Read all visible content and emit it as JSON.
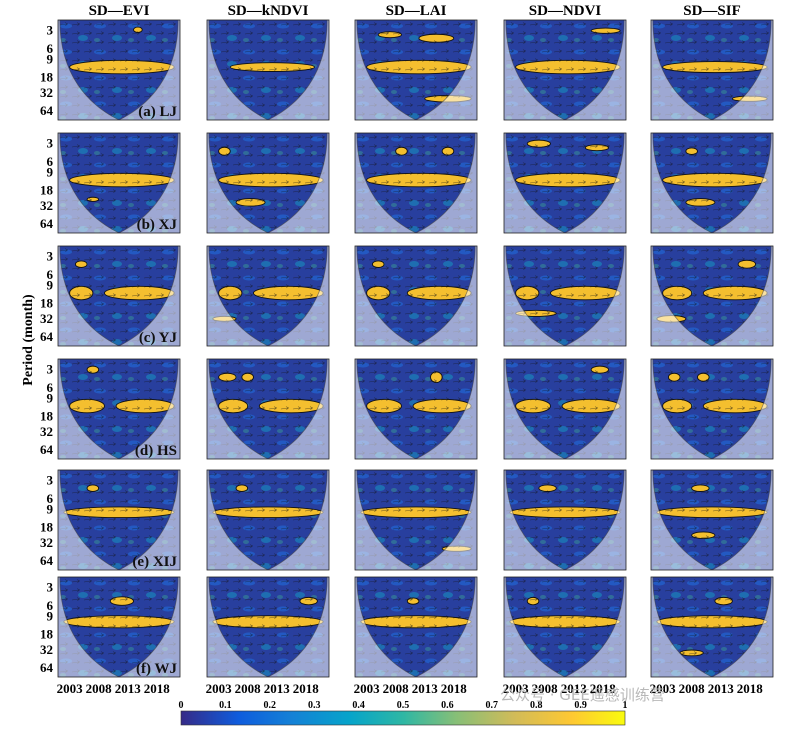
{
  "figure": {
    "columns": [
      "SD—EVI",
      "SD—kNDVI",
      "SD—LAI",
      "SD—NDVI",
      "SD—SIF"
    ],
    "rows": [
      "(a) LJ",
      "(b) XJ",
      "(c) YJ",
      "(d) HS",
      "(e) XIJ",
      "(f) WJ"
    ],
    "ylabel": "Period (month)",
    "watermark": "公众号 · GEE遥感训练营"
  },
  "chart_data": {
    "type": "heatmap",
    "x_ticks": [
      "2003",
      "2008",
      "2013",
      "2018"
    ],
    "x_range": [
      2001,
      2022
    ],
    "y_ticks": [
      "3",
      "6",
      "9",
      "18",
      "32",
      "64"
    ],
    "y_tick_values": [
      3,
      6,
      9,
      18,
      32,
      64
    ],
    "y_scale": "log2",
    "y_range": [
      2,
      90
    ],
    "colorbar": {
      "ticks": [
        "0",
        "0.1",
        "0.2",
        "0.3",
        "0.4",
        "0.5",
        "0.6",
        "0.7",
        "0.8",
        "0.9",
        "1"
      ],
      "range": [
        0,
        1
      ],
      "colors": [
        "#352a87",
        "#0f5cdd",
        "#1481d6",
        "#06a4ca",
        "#2eb7a4",
        "#87bf77",
        "#d1bb59",
        "#fec832",
        "#f9fb0e"
      ]
    },
    "panels": [
      {
        "row": "(a) LJ",
        "column": "SD—EVI",
        "bands": [
          [
            12,
            3,
            2003,
            2021
          ],
          [
            2.9,
            0.3,
            2014,
            2015.5
          ]
        ]
      },
      {
        "row": "(a) LJ",
        "column": "SD—kNDVI",
        "bands": [
          [
            12,
            2,
            2005,
            2019.5
          ]
        ]
      },
      {
        "row": "(a) LJ",
        "column": "SD—LAI",
        "bands": [
          [
            12,
            3,
            2003,
            2021
          ],
          [
            3.5,
            0.4,
            2005,
            2009
          ],
          [
            4,
            0.6,
            2012,
            2018
          ],
          [
            40,
            5,
            2013,
            2021
          ]
        ]
      },
      {
        "row": "(a) LJ",
        "column": "SD—NDVI",
        "bands": [
          [
            12,
            3,
            2003,
            2021
          ],
          [
            3,
            0.3,
            2016,
            2021
          ]
        ]
      },
      {
        "row": "(a) LJ",
        "column": "SD—SIF",
        "bands": [
          [
            12,
            2.5,
            2003,
            2021
          ],
          [
            40,
            4,
            2015,
            2021
          ]
        ]
      },
      {
        "row": "(b) XJ",
        "column": "SD—EVI",
        "bands": [
          [
            12,
            3,
            2003,
            2021
          ],
          [
            25,
            2,
            2006,
            2008
          ]
        ]
      },
      {
        "row": "(b) XJ",
        "column": "SD—kNDVI",
        "bands": [
          [
            12,
            3,
            2003,
            2021
          ],
          [
            4,
            0.6,
            2003,
            2005
          ],
          [
            28,
            4,
            2006,
            2011
          ]
        ]
      },
      {
        "row": "(b) XJ",
        "column": "SD—LAI",
        "bands": [
          [
            12,
            3,
            2003,
            2021
          ],
          [
            4,
            0.6,
            2008,
            2010
          ],
          [
            4,
            0.6,
            2016,
            2018
          ]
        ]
      },
      {
        "row": "(b) XJ",
        "column": "SD—NDVI",
        "bands": [
          [
            12,
            3,
            2003,
            2021
          ],
          [
            3,
            0.4,
            2005,
            2009
          ],
          [
            3.5,
            0.4,
            2015,
            2019
          ]
        ]
      },
      {
        "row": "(b) XJ",
        "column": "SD—SIF",
        "bands": [
          [
            12,
            3,
            2003,
            2021
          ],
          [
            4,
            0.5,
            2007,
            2009
          ],
          [
            28,
            4,
            2007,
            2012
          ]
        ]
      },
      {
        "row": "(c) YJ",
        "column": "SD—EVI",
        "bands": [
          [
            12,
            3,
            2003,
            2007
          ],
          [
            12,
            3,
            2009,
            2021
          ],
          [
            4,
            0.5,
            2004,
            2006
          ]
        ]
      },
      {
        "row": "(c) YJ",
        "column": "SD—kNDVI",
        "bands": [
          [
            12,
            3,
            2003,
            2007
          ],
          [
            12,
            3,
            2009,
            2021
          ],
          [
            32,
            3,
            2002,
            2006
          ]
        ]
      },
      {
        "row": "(c) YJ",
        "column": "SD—LAI",
        "bands": [
          [
            12,
            3,
            2003,
            2007
          ],
          [
            12,
            3,
            2010,
            2021
          ],
          [
            4,
            0.5,
            2004,
            2006
          ]
        ]
      },
      {
        "row": "(c) YJ",
        "column": "SD—NDVI",
        "bands": [
          [
            12,
            3,
            2003,
            2007
          ],
          [
            12,
            3,
            2009,
            2021
          ],
          [
            26,
            3,
            2003,
            2010
          ]
        ]
      },
      {
        "row": "(c) YJ",
        "column": "SD—SIF",
        "bands": [
          [
            12,
            3,
            2003,
            2008
          ],
          [
            12,
            3,
            2010,
            2021
          ],
          [
            4,
            0.6,
            2016,
            2019
          ],
          [
            32,
            4,
            2002,
            2007
          ]
        ]
      },
      {
        "row": "(d) HS",
        "column": "SD—EVI",
        "bands": [
          [
            12,
            3,
            2003,
            2009
          ],
          [
            12,
            3,
            2011,
            2021
          ],
          [
            3,
            0.4,
            2006,
            2008
          ]
        ]
      },
      {
        "row": "(d) HS",
        "column": "SD—kNDVI",
        "bands": [
          [
            12,
            3,
            2003,
            2008
          ],
          [
            12,
            3,
            2010,
            2021
          ],
          [
            4,
            0.6,
            2003,
            2006
          ],
          [
            4,
            0.6,
            2007,
            2009
          ]
        ]
      },
      {
        "row": "(d) HS",
        "column": "SD—LAI",
        "bands": [
          [
            12,
            3,
            2003,
            2009
          ],
          [
            12,
            3,
            2011,
            2021
          ],
          [
            4,
            0.8,
            2014,
            2016
          ]
        ]
      },
      {
        "row": "(d) HS",
        "column": "SD—NDVI",
        "bands": [
          [
            12,
            3,
            2003,
            2009
          ],
          [
            12,
            3,
            2011,
            2021
          ],
          [
            3,
            0.4,
            2016,
            2019
          ]
        ]
      },
      {
        "row": "(d) HS",
        "column": "SD—SIF",
        "bands": [
          [
            12,
            3,
            2003,
            2008
          ],
          [
            12,
            3,
            2010,
            2021
          ],
          [
            4,
            0.6,
            2004,
            2006
          ],
          [
            4,
            0.6,
            2009,
            2011
          ]
        ]
      },
      {
        "row": "(e) XIJ",
        "column": "SD—EVI",
        "bands": [
          [
            10,
            2,
            2002,
            2021
          ],
          [
            4,
            0.5,
            2006,
            2008
          ]
        ]
      },
      {
        "row": "(e) XIJ",
        "column": "SD—kNDVI",
        "bands": [
          [
            10,
            2,
            2002,
            2021
          ],
          [
            4,
            0.5,
            2006,
            2008
          ]
        ]
      },
      {
        "row": "(e) XIJ",
        "column": "SD—LAI",
        "bands": [
          [
            10,
            2,
            2002,
            2021
          ],
          [
            40,
            4,
            2016,
            2021
          ]
        ]
      },
      {
        "row": "(e) XIJ",
        "column": "SD—NDVI",
        "bands": [
          [
            10,
            2,
            2002,
            2021
          ],
          [
            4,
            0.5,
            2007,
            2010
          ]
        ]
      },
      {
        "row": "(e) XIJ",
        "column": "SD—SIF",
        "bands": [
          [
            10,
            2,
            2002,
            2021
          ],
          [
            4,
            0.5,
            2008,
            2011
          ],
          [
            24,
            3,
            2008,
            2012
          ]
        ]
      },
      {
        "row": "(f) WJ",
        "column": "SD—EVI",
        "bands": [
          [
            11,
            2.5,
            2002,
            2021
          ],
          [
            5,
            0.8,
            2010,
            2014
          ]
        ]
      },
      {
        "row": "(f) WJ",
        "column": "SD—kNDVI",
        "bands": [
          [
            11,
            2.5,
            2002,
            2021
          ],
          [
            5,
            0.7,
            2017,
            2020
          ]
        ]
      },
      {
        "row": "(f) WJ",
        "column": "SD—LAI",
        "bands": [
          [
            11,
            2.5,
            2002,
            2021
          ],
          [
            5,
            0.6,
            2010,
            2012
          ]
        ]
      },
      {
        "row": "(f) WJ",
        "column": "SD—NDVI",
        "bands": [
          [
            11,
            2.5,
            2002,
            2021
          ],
          [
            5,
            0.7,
            2005,
            2007
          ]
        ]
      },
      {
        "row": "(f) WJ",
        "column": "SD—SIF",
        "bands": [
          [
            11,
            2.5,
            2002,
            2021
          ],
          [
            5,
            0.7,
            2012,
            2015
          ],
          [
            36,
            4,
            2006,
            2010
          ]
        ]
      }
    ]
  }
}
